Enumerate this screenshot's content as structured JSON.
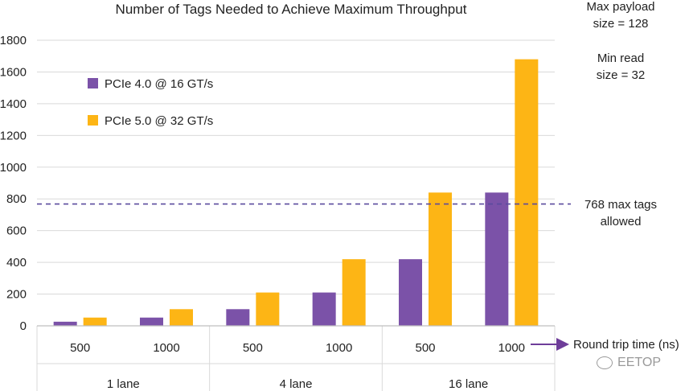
{
  "chart_data": {
    "type": "bar",
    "title": "Number of Tags Needed to Achieve Maximum Throughput",
    "ylim": [
      0,
      1800
    ],
    "yticks": [
      0,
      200,
      400,
      600,
      800,
      1000,
      1200,
      1400,
      1600,
      1800
    ],
    "categories": [
      "500",
      "1000",
      "500",
      "1000",
      "500",
      "1000"
    ],
    "groups": [
      "1 lane",
      "4 lane",
      "16 lane"
    ],
    "xlabel": "Round trip time (ns)",
    "series": [
      {
        "name": "PCIe 4.0 @ 16 GT/s",
        "color": "#7B52A8",
        "values": [
          26,
          52,
          105,
          210,
          420,
          840
        ]
      },
      {
        "name": "PCIe 5.0 @ 32 GT/s",
        "color": "#FDB515",
        "values": [
          52,
          105,
          210,
          420,
          840,
          1680
        ]
      }
    ],
    "reference_line": {
      "value": 768,
      "label_line1": "768 max tags",
      "label_line2": "allowed",
      "color": "#5A4A9E"
    },
    "legend_position": "top-left",
    "grid": true
  },
  "notes": {
    "payload_line1": "Max payload",
    "payload_line2": "size = 128",
    "read_line1": "Min read",
    "read_line2": "size = 32"
  },
  "watermark": "EETOP"
}
